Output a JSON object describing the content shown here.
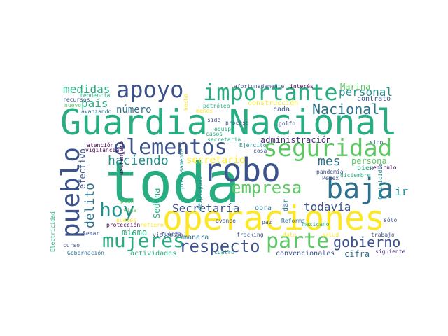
{
  "words": [
    "toda",
    "Guardia Nacional",
    "operaciones",
    "robo",
    "pueblo",
    "baja",
    "seguridad",
    "importante",
    "apoyo",
    "elementos",
    "empresa",
    "hoy",
    "mujeres",
    "parte",
    "respecto",
    "Nacional",
    "gobierno",
    "Secretaría",
    "personal",
    "medidas",
    "haciendo",
    "todavía",
    "mes",
    "delito",
    "secretario",
    "país",
    "número",
    "ir",
    "Marina",
    "administración",
    "persona",
    "mismo",
    "efectivo",
    "Sedena",
    "cifra",
    "manera",
    "actividades",
    "convencionales",
    "construcción",
    "cada",
    "obra",
    "dar",
    "contrato",
    "vehículo",
    "bien",
    "pandemia",
    "Pemex",
    "diciembre",
    "proceso",
    "golfo",
    "atención",
    "vigilancia",
    "extranjero",
    "precisamente",
    "desplegado",
    "Ejército",
    "cosa",
    "casos",
    "equipo",
    "secretaria",
    "petróleo",
    "sido",
    "menos",
    "hecho",
    "recursos",
    "tendencia",
    "nuevo",
    "avanzando",
    "afortunadamente",
    "interés",
    "sino",
    "sólo",
    "feminicidio",
    "Electricidad",
    "Gobernación",
    "curso",
    "Semar",
    "protección",
    "puedes",
    "refiere",
    "vida",
    "plan",
    "fuerza",
    "avance",
    "violencia",
    "paz",
    "fracking",
    "Reforma",
    "dato",
    "salud",
    "mexicano",
    "trabajo",
    "siguiente",
    "cuatro"
  ],
  "colors": {
    "dark_purple": "#440154",
    "indigo": "#472f7d",
    "slate_blue": "#3b528b",
    "steel_blue": "#2c728e",
    "teal": "#21908d",
    "green_teal": "#27ad81",
    "green": "#5cc863",
    "lime": "#aadc32",
    "yellow": "#fde725"
  }
}
